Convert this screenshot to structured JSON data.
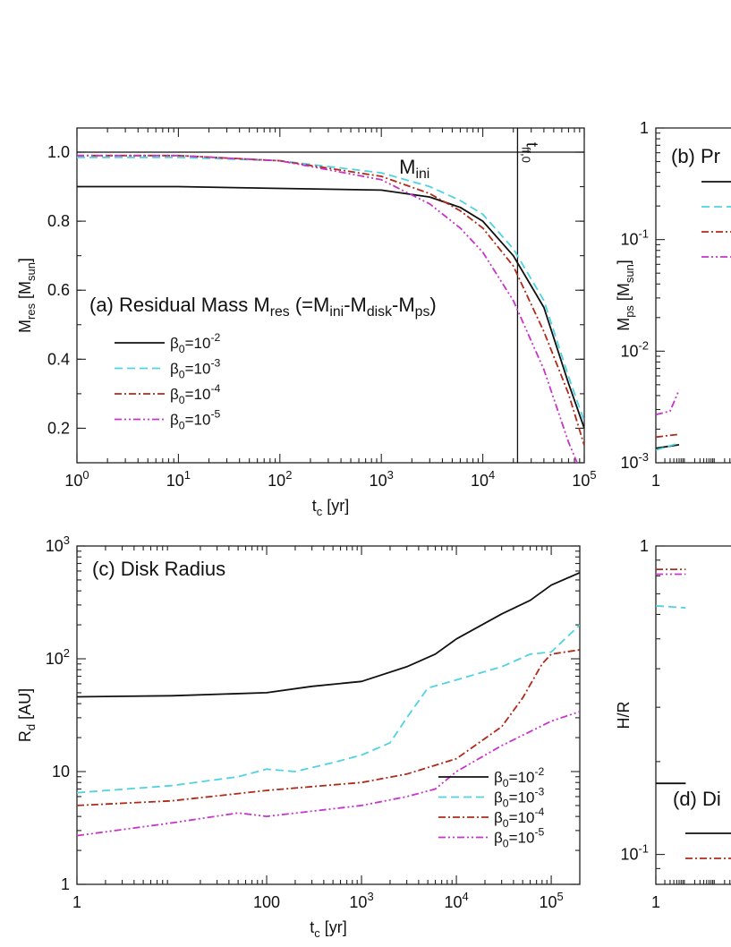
{
  "styles": {
    "c1": {
      "color": "#111111",
      "dash": ""
    },
    "c2": {
      "color": "#4fd3e0",
      "dash": "9,5"
    },
    "c3": {
      "color": "#b02a1a",
      "dash": "8,3,2,3"
    },
    "c4": {
      "color": "#c634c9",
      "dash": "8,3,2,3,2,3"
    }
  },
  "legend_labels": [
    {
      "base": "β",
      "sub": "0",
      "eq": "=10",
      "sup": "-2"
    },
    {
      "base": "β",
      "sub": "0",
      "eq": "=10",
      "sup": "-3"
    },
    {
      "base": "β",
      "sub": "0",
      "eq": "=10",
      "sup": "-4"
    },
    {
      "base": "β",
      "sub": "0",
      "eq": "=10",
      "sup": "-5"
    }
  ],
  "chart_data": [
    {
      "id": "a",
      "type": "line",
      "title": "(a) Residual  Mass M",
      "title_parts": {
        "pre": "(a) Residual  Mass M",
        "sub1": "res",
        "mid1": " (=M",
        "sub2": "ini",
        "mid2": "-M",
        "sub3": "disk",
        "mid3": "-M",
        "sub4": "ps",
        "end": ")"
      },
      "xlabel": {
        "base": "t",
        "sub": "c",
        "rest": " [yr]"
      },
      "ylabel": {
        "base": "M",
        "sub": "res",
        "rest": " [M",
        "sub2": "sun",
        "end": "]"
      },
      "xscale": "log",
      "xlim": [
        1,
        100000
      ],
      "yscale": "linear",
      "ylim": [
        0.1,
        1.07
      ],
      "xticks": [
        {
          "v": 1,
          "m": "10",
          "e": "0"
        },
        {
          "v": 10,
          "m": "10",
          "e": "1"
        },
        {
          "v": 100,
          "m": "10",
          "e": "2"
        },
        {
          "v": 1000,
          "m": "10",
          "e": "3"
        },
        {
          "v": 10000,
          "m": "10",
          "e": "4"
        },
        {
          "v": 100000,
          "m": "10",
          "e": "5"
        }
      ],
      "yticks": [
        {
          "v": 0.2,
          "label": "0.2"
        },
        {
          "v": 0.4,
          "label": "0.4"
        },
        {
          "v": 0.6,
          "label": "0.6"
        },
        {
          "v": 0.8,
          "label": "0.8"
        },
        {
          "v": 1.0,
          "label": "1.0"
        }
      ],
      "annotations": {
        "hline_value": 1.0,
        "hline_label": {
          "base": "M",
          "sub": "ini"
        },
        "vline_value": 22000,
        "vline_label": "t",
        "vline_sub": "ff,0"
      },
      "series": [
        {
          "name": "β0=10-2",
          "style": "c1",
          "x": [
            1,
            10,
            100,
            1000,
            3000,
            6000,
            10000,
            20000,
            40000,
            70000,
            100000
          ],
          "y": [
            0.9,
            0.9,
            0.895,
            0.89,
            0.87,
            0.84,
            0.8,
            0.7,
            0.55,
            0.33,
            0.2
          ]
        },
        {
          "name": "β0=10-3",
          "style": "c2",
          "x": [
            1,
            10,
            100,
            1000,
            3000,
            6000,
            10000,
            20000,
            40000,
            70000,
            100000
          ],
          "y": [
            0.985,
            0.985,
            0.975,
            0.94,
            0.9,
            0.86,
            0.82,
            0.72,
            0.57,
            0.35,
            0.22
          ]
        },
        {
          "name": "β0=10-4",
          "style": "c3",
          "x": [
            1,
            10,
            100,
            1000,
            3000,
            6000,
            10000,
            20000,
            40000,
            70000,
            100000
          ],
          "y": [
            0.99,
            0.99,
            0.975,
            0.93,
            0.88,
            0.83,
            0.78,
            0.67,
            0.48,
            0.3,
            0.15
          ]
        },
        {
          "name": "β0=10-5",
          "style": "c4",
          "x": [
            1,
            10,
            100,
            1000,
            3000,
            6000,
            10000,
            20000,
            40000,
            70000,
            85000
          ],
          "y": [
            0.99,
            0.99,
            0.975,
            0.92,
            0.85,
            0.78,
            0.71,
            0.57,
            0.37,
            0.16,
            0.1
          ]
        }
      ]
    },
    {
      "id": "b",
      "type": "line",
      "title": "(b) Pr",
      "ylabel": {
        "base": "M",
        "sub": "ps",
        "rest": " [M",
        "sub2": "sun",
        "end": "]"
      },
      "xscale": "log",
      "xlim": [
        1,
        100000
      ],
      "yscale": "log",
      "ylim": [
        0.001,
        1
      ],
      "xticks": [
        {
          "v": 1,
          "label": "1"
        }
      ],
      "yticks": [
        {
          "v": 0.001,
          "m": "10",
          "e": "-3"
        },
        {
          "v": 0.01,
          "m": "10",
          "e": "-2"
        },
        {
          "v": 0.1,
          "m": "10",
          "e": "-1"
        },
        {
          "v": 1,
          "label": "1"
        }
      ],
      "series": [
        {
          "name": "β0=10-2",
          "style": "c1",
          "x": [
            1,
            6
          ],
          "y": [
            0.00135,
            0.00145
          ]
        },
        {
          "name": "β0=10-3",
          "style": "c2",
          "x": [
            1,
            6
          ],
          "y": [
            0.0013,
            0.0015
          ]
        },
        {
          "name": "β0=10-4",
          "style": "c3",
          "x": [
            1,
            6
          ],
          "y": [
            0.0017,
            0.0018
          ]
        },
        {
          "name": "β0=10-5",
          "style": "c4",
          "x": [
            1,
            3,
            6
          ],
          "y": [
            0.0027,
            0.0029,
            0.0045
          ]
        }
      ]
    },
    {
      "id": "c",
      "type": "line",
      "title": "(c) Disk Radius",
      "xlabel": {
        "base": "t",
        "sub": "c",
        "rest": " [yr]"
      },
      "ylabel": {
        "base": "R",
        "sub": "d",
        "rest": " [AU]",
        "sub2": "",
        "end": ""
      },
      "xscale": "log",
      "xlim": [
        1,
        200000
      ],
      "yscale": "log",
      "ylim": [
        1,
        1000
      ],
      "xticks": [
        {
          "v": 1,
          "label": "1"
        },
        {
          "v": 100,
          "label": "100"
        },
        {
          "v": 1000,
          "m": "10",
          "e": "3"
        },
        {
          "v": 10000,
          "m": "10",
          "e": "4"
        },
        {
          "v": 100000,
          "m": "10",
          "e": "5"
        }
      ],
      "yticks": [
        {
          "v": 1,
          "label": "1"
        },
        {
          "v": 10,
          "label": "10"
        },
        {
          "v": 100,
          "m": "10",
          "e": "2"
        },
        {
          "v": 1000,
          "m": "10",
          "e": "3"
        }
      ],
      "series": [
        {
          "name": "β0=10-2",
          "style": "c1",
          "x": [
            1,
            10,
            100,
            300,
            1000,
            3000,
            6000,
            10000,
            30000,
            60000,
            100000,
            200000
          ],
          "y": [
            46,
            47,
            50,
            57,
            63,
            85,
            110,
            150,
            250,
            330,
            450,
            580
          ]
        },
        {
          "name": "β0=10-3",
          "style": "c2",
          "x": [
            1,
            10,
            50,
            100,
            200,
            500,
            1000,
            2000,
            3000,
            5000,
            10000,
            30000,
            60000,
            100000,
            200000
          ],
          "y": [
            6.5,
            7.5,
            9,
            10.5,
            10,
            12,
            14,
            18,
            30,
            55,
            65,
            85,
            110,
            115,
            200
          ]
        },
        {
          "name": "β0=10-4",
          "style": "c3",
          "x": [
            1,
            10,
            100,
            1000,
            3000,
            10000,
            30000,
            50000,
            80000,
            100000,
            200000
          ],
          "y": [
            5,
            5.5,
            6.8,
            8,
            9.5,
            13,
            25,
            45,
            90,
            110,
            120
          ]
        },
        {
          "name": "β0=10-5",
          "style": "c4",
          "x": [
            1,
            10,
            50,
            100,
            1000,
            3000,
            6000,
            10000,
            30000,
            100000,
            200000
          ],
          "y": [
            2.7,
            3.5,
            4.3,
            4.0,
            5.0,
            6.0,
            7.0,
            10,
            17,
            28,
            34
          ]
        }
      ]
    },
    {
      "id": "d",
      "type": "line",
      "title": "(d) Di",
      "ylabel": {
        "base": "H/R",
        "sub": "",
        "rest": "",
        "sub2": "",
        "end": ""
      },
      "xscale": "log",
      "xlim": [
        1,
        100000
      ],
      "yscale": "log",
      "ylim": [
        0.08,
        1
      ],
      "xticks": [
        {
          "v": 1,
          "label": "1"
        }
      ],
      "yticks": [
        {
          "v": 0.1,
          "m": "10",
          "e": "-1"
        },
        {
          "v": 1,
          "label": "1"
        }
      ],
      "series": [
        {
          "name": "β0=10-2",
          "style": "c1",
          "x": [
            1,
            10
          ],
          "y": [
            0.17,
            0.17
          ]
        },
        {
          "name": "β0=10-3",
          "style": "c2",
          "x": [
            1,
            10
          ],
          "y": [
            0.64,
            0.63
          ]
        },
        {
          "name": "β0=10-4",
          "style": "c3",
          "x": [
            1,
            10
          ],
          "y": [
            0.84,
            0.84
          ]
        },
        {
          "name": "β0=10-5",
          "style": "c4",
          "x": [
            1,
            10
          ],
          "y": [
            0.81,
            0.81
          ]
        }
      ]
    }
  ]
}
